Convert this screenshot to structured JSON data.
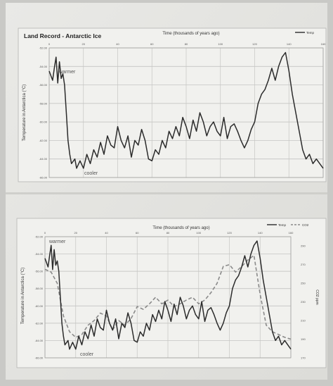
{
  "chart_data": [
    {
      "type": "line",
      "title": "Land Record - Antarctic Ice",
      "xlabel": "Time (thousands of years ago)",
      "ylabel": "Temperature in Antarctica (°C)",
      "x_ticks": [
        "0",
        "20",
        "40",
        "60",
        "80",
        "100",
        "120",
        "140",
        "160"
      ],
      "y_ticks": [
        "-52.00",
        "-54.00",
        "-56.00",
        "-58.00",
        "-60.00",
        "-62.00",
        "-64.00",
        "-66.00"
      ],
      "xlim": [
        0,
        160
      ],
      "ylim": [
        -66,
        -52
      ],
      "grid": true,
      "legend_position": "top-right",
      "annotations": [
        "warmer",
        "cooler"
      ],
      "series": [
        {
          "name": "Temp",
          "color": "#2b2b2b",
          "x": [
            0,
            2,
            3,
            4,
            5,
            6,
            7,
            8,
            9,
            10,
            11,
            12,
            13,
            15,
            16,
            18,
            20,
            22,
            24,
            26,
            28,
            30,
            32,
            34,
            36,
            38,
            40,
            42,
            44,
            46,
            48,
            50,
            52,
            54,
            56,
            58,
            60,
            62,
            64,
            66,
            68,
            70,
            72,
            74,
            76,
            78,
            80,
            82,
            84,
            86,
            88,
            90,
            92,
            94,
            96,
            98,
            100,
            102,
            104,
            106,
            108,
            110,
            112,
            114,
            116,
            118,
            120,
            122,
            124,
            126,
            128,
            130,
            132,
            134,
            136,
            138,
            140,
            142,
            144,
            146,
            148,
            150,
            152,
            154,
            156,
            158,
            160
          ],
          "values": [
            -54.5,
            -55.5,
            -54.2,
            -53.0,
            -55.8,
            -53.5,
            -55.3,
            -54.8,
            -56.0,
            -59.0,
            -62.0,
            -63.5,
            -64.5,
            -64.0,
            -65.0,
            -64.2,
            -65.0,
            -63.5,
            -64.5,
            -63.0,
            -63.8,
            -62.2,
            -63.5,
            -61.5,
            -62.5,
            -62.8,
            -60.5,
            -62.0,
            -62.8,
            -61.5,
            -63.8,
            -62.0,
            -62.5,
            -60.8,
            -62.0,
            -64.0,
            -64.2,
            -63.0,
            -63.5,
            -62.0,
            -62.8,
            -61.0,
            -61.8,
            -60.5,
            -61.5,
            -59.5,
            -60.5,
            -61.8,
            -59.8,
            -61.0,
            -59.0,
            -60.0,
            -61.5,
            -60.5,
            -60.0,
            -61.0,
            -61.5,
            -59.5,
            -61.8,
            -60.5,
            -60.2,
            -61.0,
            -62.0,
            -62.8,
            -62.0,
            -60.8,
            -60.0,
            -58.0,
            -57.0,
            -56.5,
            -55.5,
            -54.2,
            -55.5,
            -54.0,
            -53.0,
            -52.5,
            -54.5,
            -57.0,
            -59.0,
            -61.0,
            -63.0,
            -64.0,
            -63.5,
            -64.5,
            -64.0,
            -64.5,
            -65.0
          ]
        }
      ]
    },
    {
      "type": "line",
      "title": "",
      "xlabel": "Time (thousands of years ago)",
      "ylabel": "Temperature in Antarctica (°C)",
      "y2label": "CO2 ppm",
      "x_ticks": [
        "0",
        "20",
        "40",
        "60",
        "80",
        "100",
        "120",
        "140",
        "160"
      ],
      "y_ticks": [
        "-52.00",
        "-54.00",
        "-56.00",
        "-58.00",
        "-60.00",
        "-62.00",
        "-64.00",
        "-66.00"
      ],
      "y2_ticks": [
        "290",
        "270",
        "250",
        "230",
        "210",
        "190",
        "170"
      ],
      "xlim": [
        0,
        160
      ],
      "ylim": [
        -66,
        -52
      ],
      "y2lim": [
        170,
        300
      ],
      "grid": true,
      "legend_position": "top-right",
      "annotations": [
        "warmer",
        "cooler"
      ],
      "series": [
        {
          "name": "Temp",
          "color": "#2b2b2b",
          "axis": "left",
          "x": [
            0,
            2,
            3,
            4,
            5,
            6,
            7,
            8,
            9,
            10,
            11,
            12,
            13,
            15,
            16,
            18,
            20,
            22,
            24,
            26,
            28,
            30,
            32,
            34,
            36,
            38,
            40,
            42,
            44,
            46,
            48,
            50,
            52,
            54,
            56,
            58,
            60,
            62,
            64,
            66,
            68,
            70,
            72,
            74,
            76,
            78,
            80,
            82,
            84,
            86,
            88,
            90,
            92,
            94,
            96,
            98,
            100,
            102,
            104,
            106,
            108,
            110,
            112,
            114,
            116,
            118,
            120,
            122,
            124,
            126,
            128,
            130,
            132,
            134,
            136,
            138,
            140,
            142,
            144,
            146,
            148,
            150,
            152,
            154,
            156,
            158,
            160
          ],
          "values": [
            -54.5,
            -55.5,
            -54.2,
            -53.0,
            -55.8,
            -53.5,
            -55.3,
            -54.8,
            -56.0,
            -59.0,
            -62.0,
            -63.5,
            -64.5,
            -64.0,
            -65.0,
            -64.2,
            -65.0,
            -63.5,
            -64.5,
            -63.0,
            -63.8,
            -62.2,
            -63.5,
            -61.5,
            -62.5,
            -62.8,
            -60.5,
            -62.0,
            -62.8,
            -61.5,
            -63.8,
            -62.0,
            -62.5,
            -60.8,
            -62.0,
            -64.0,
            -64.2,
            -63.0,
            -63.5,
            -62.0,
            -62.8,
            -61.0,
            -61.8,
            -60.5,
            -61.5,
            -59.5,
            -60.5,
            -61.8,
            -59.8,
            -61.0,
            -59.0,
            -60.0,
            -61.5,
            -60.5,
            -60.0,
            -61.0,
            -61.5,
            -59.5,
            -61.8,
            -60.5,
            -60.2,
            -61.0,
            -62.0,
            -62.8,
            -62.0,
            -60.8,
            -60.0,
            -58.0,
            -57.0,
            -56.5,
            -55.5,
            -54.2,
            -55.5,
            -54.0,
            -53.0,
            -52.5,
            -54.5,
            -57.0,
            -59.0,
            -61.0,
            -63.0,
            -64.0,
            -63.5,
            -64.5,
            -64.0,
            -64.5,
            -65.0
          ]
        },
        {
          "name": "CO2",
          "color": "#8a8a8a",
          "axis": "right",
          "dashed": true,
          "x": [
            0,
            4,
            8,
            12,
            16,
            20,
            24,
            28,
            32,
            36,
            40,
            44,
            48,
            52,
            56,
            60,
            64,
            68,
            72,
            76,
            80,
            84,
            88,
            92,
            96,
            100,
            104,
            108,
            112,
            116,
            120,
            124,
            128,
            132,
            136,
            140,
            144,
            148,
            152,
            156,
            160
          ],
          "values": [
            265,
            262,
            250,
            215,
            198,
            192,
            195,
            205,
            210,
            218,
            215,
            200,
            210,
            205,
            212,
            225,
            222,
            228,
            235,
            228,
            232,
            225,
            228,
            232,
            235,
            228,
            232,
            240,
            250,
            268,
            270,
            262,
            268,
            275,
            280,
            238,
            205,
            198,
            195,
            192,
            190
          ]
        }
      ]
    }
  ]
}
